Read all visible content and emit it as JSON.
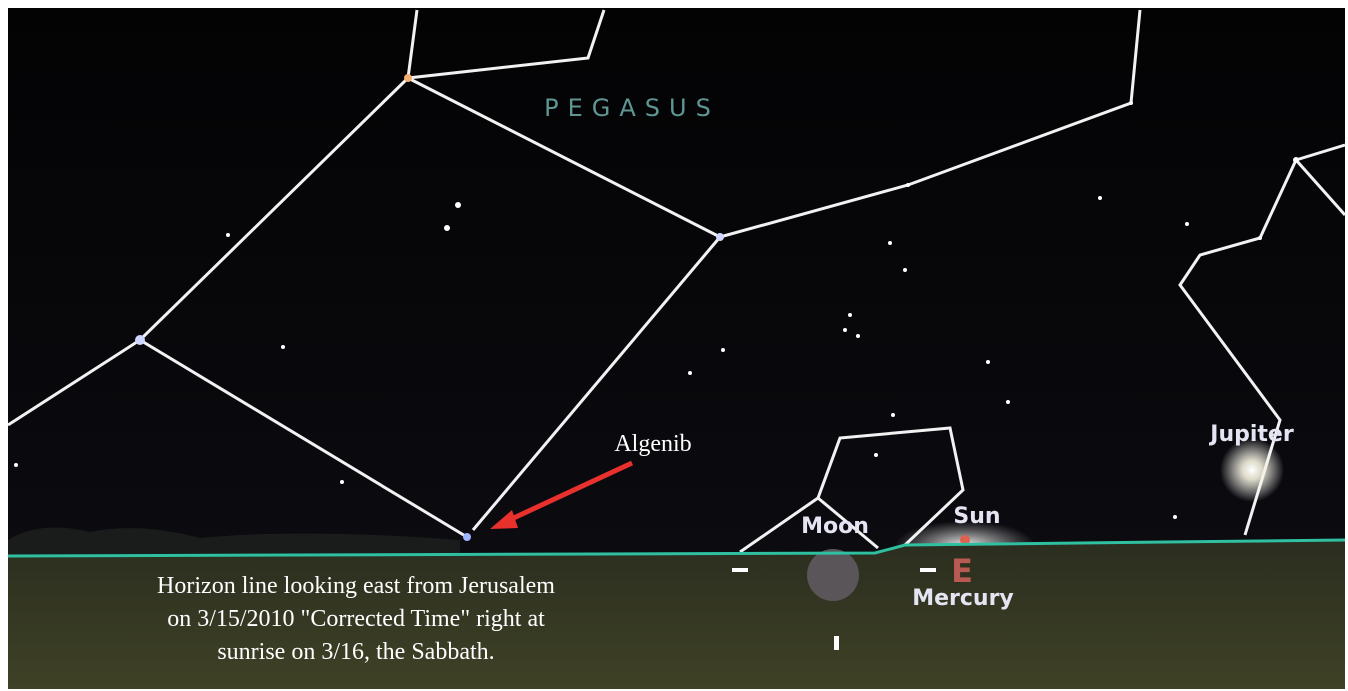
{
  "constellation": "PEGASUS",
  "labels": {
    "star": "Algenib",
    "planet_1": "Jupiter",
    "moon": "Moon",
    "sun": "Sun",
    "planet_2": "Mercury",
    "compass": "E"
  },
  "caption": [
    "Horizon line looking east from Jerusalem",
    "on 3/15/2010 \"Corrected Time\" right at",
    "sunrise on 3/16, the Sabbath."
  ]
}
